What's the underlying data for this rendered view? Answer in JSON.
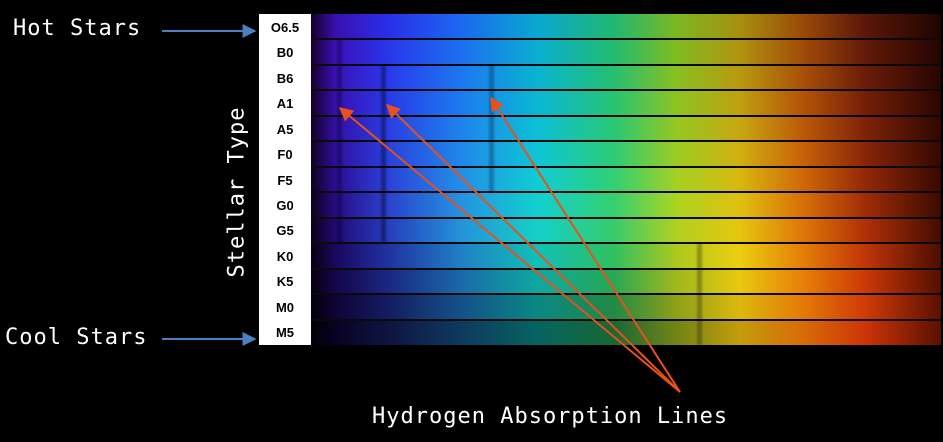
{
  "labels": {
    "hot_stars": "Hot Stars",
    "cool_stars": "Cool Stars",
    "stellar_type": "Stellar Type",
    "hydrogen_lines": "Hydrogen Absorption Lines"
  },
  "stellar_types": [
    "O6.5",
    "B0",
    "B6",
    "A1",
    "A5",
    "F0",
    "F5",
    "G0",
    "G5",
    "K0",
    "K5",
    "M0",
    "M5"
  ],
  "colors": {
    "arrow_blue": "#4a7fc0",
    "arrow_red": "#e8501e",
    "background": "#000000",
    "type_column": "#ffffff"
  }
}
